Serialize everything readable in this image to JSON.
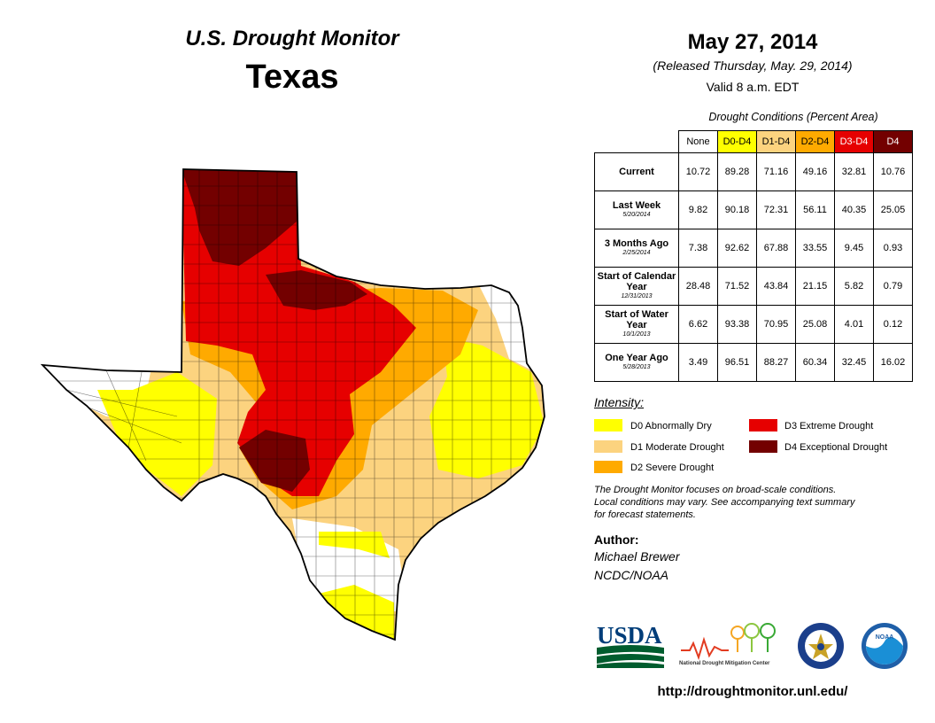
{
  "header": {
    "monitor_title": "U.S. Drought Monitor",
    "state": "Texas",
    "date": "May 27, 2014",
    "released": "(Released Thursday, May. 29, 2014)",
    "valid": "Valid 8 a.m. EDT"
  },
  "table": {
    "caption": "Drought Conditions (Percent Area)",
    "columns": [
      {
        "label": "None",
        "color": "#ffffff",
        "text_color": "#000000"
      },
      {
        "label": "D0-D4",
        "color": "#ffff00",
        "text_color": "#000000"
      },
      {
        "label": "D1-D4",
        "color": "#fcd37f",
        "text_color": "#000000"
      },
      {
        "label": "D2-D4",
        "color": "#ffaa00",
        "text_color": "#000000"
      },
      {
        "label": "D3-D4",
        "color": "#e60000",
        "text_color": "#ffffff"
      },
      {
        "label": "D4",
        "color": "#730000",
        "text_color": "#ffffff"
      }
    ],
    "rows": [
      {
        "label": "Current",
        "date": "",
        "values": [
          "10.72",
          "89.28",
          "71.16",
          "49.16",
          "32.81",
          "10.76"
        ]
      },
      {
        "label": "Last Week",
        "date": "5/20/2014",
        "values": [
          "9.82",
          "90.18",
          "72.31",
          "56.11",
          "40.35",
          "25.05"
        ]
      },
      {
        "label": "3 Months Ago",
        "date": "2/25/2014",
        "values": [
          "7.38",
          "92.62",
          "67.88",
          "33.55",
          "9.45",
          "0.93"
        ]
      },
      {
        "label": "Start of Calendar Year",
        "date": "12/31/2013",
        "values": [
          "28.48",
          "71.52",
          "43.84",
          "21.15",
          "5.82",
          "0.79"
        ]
      },
      {
        "label": "Start of Water Year",
        "date": "10/1/2013",
        "values": [
          "6.62",
          "93.38",
          "70.95",
          "25.08",
          "4.01",
          "0.12"
        ]
      },
      {
        "label": "One Year Ago",
        "date": "5/28/2013",
        "values": [
          "3.49",
          "96.51",
          "88.27",
          "60.34",
          "32.45",
          "16.02"
        ]
      }
    ]
  },
  "legend": {
    "title": "Intensity:",
    "items": [
      {
        "label": "D0 Abnormally Dry",
        "color": "#ffff00"
      },
      {
        "label": "D1 Moderate Drought",
        "color": "#fcd37f"
      },
      {
        "label": "D2 Severe Drought",
        "color": "#ffaa00"
      },
      {
        "label": "D3 Extreme Drought",
        "color": "#e60000"
      },
      {
        "label": "D4 Exceptional Drought",
        "color": "#730000"
      }
    ]
  },
  "note": {
    "line1": "The Drought Monitor focuses on broad-scale conditions.",
    "line2": "Local conditions may vary. See accompanying text summary",
    "line3": "for forecast statements."
  },
  "author": {
    "heading": "Author:",
    "name": "Michael Brewer",
    "org": "NCDC/NOAA"
  },
  "logos": {
    "usda": "USDA",
    "ndmc": "National Drought Mitigation Center",
    "noaa": "NOAA"
  },
  "url": "http://droughtmonitor.unl.edu/"
}
